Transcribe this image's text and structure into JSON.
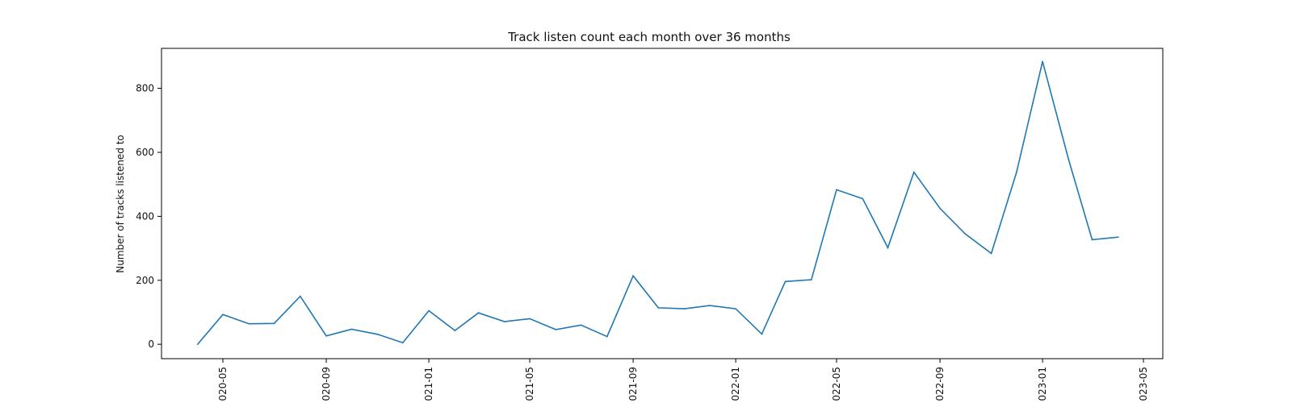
{
  "chart_data": {
    "type": "line",
    "title": "Track listen count each month over 36 months",
    "xlabel": "",
    "ylabel": "Number of tracks listened to",
    "x_tick_labels": [
      "020-05",
      "020-09",
      "021-01",
      "021-05",
      "021-09",
      "022-01",
      "022-05",
      "022-09",
      "023-01",
      "023-05"
    ],
    "x_tick_dates": [
      "2020-05-01",
      "2020-09-01",
      "2021-01-01",
      "2021-05-01",
      "2021-09-01",
      "2022-01-01",
      "2022-05-01",
      "2022-09-01",
      "2023-01-01",
      "2023-05-01"
    ],
    "y_ticks": [
      0,
      200,
      400,
      600,
      800
    ],
    "ylim": [
      -45,
      925
    ],
    "xlim": [
      "2020-02-18",
      "2023-05-24"
    ],
    "grid": false,
    "line_color": "#1f77b4",
    "series": [
      {
        "x": [
          "2020-04-01",
          "2020-05-01",
          "2020-06-01",
          "2020-07-01",
          "2020-08-01",
          "2020-09-01",
          "2020-10-01",
          "2020-11-01",
          "2020-12-01",
          "2021-01-01",
          "2021-02-01",
          "2021-03-01",
          "2021-04-01",
          "2021-05-01",
          "2021-06-01",
          "2021-07-01",
          "2021-08-01",
          "2021-09-01",
          "2021-10-01",
          "2021-11-01",
          "2021-12-01",
          "2022-01-01",
          "2022-02-01",
          "2022-03-01",
          "2022-04-01",
          "2022-05-01",
          "2022-06-01",
          "2022-07-01",
          "2022-08-01",
          "2022-09-01",
          "2022-10-01",
          "2022-11-01",
          "2022-12-01",
          "2023-01-01",
          "2023-02-01",
          "2023-03-01",
          "2023-04-01"
        ],
        "values": [
          0,
          93,
          64,
          65,
          150,
          26,
          47,
          31,
          5,
          105,
          43,
          98,
          71,
          80,
          46,
          60,
          24,
          214,
          114,
          111,
          121,
          111,
          32,
          196,
          202,
          483,
          455,
          302,
          538,
          425,
          345,
          284,
          537,
          884,
          577,
          327,
          335
        ]
      }
    ]
  }
}
